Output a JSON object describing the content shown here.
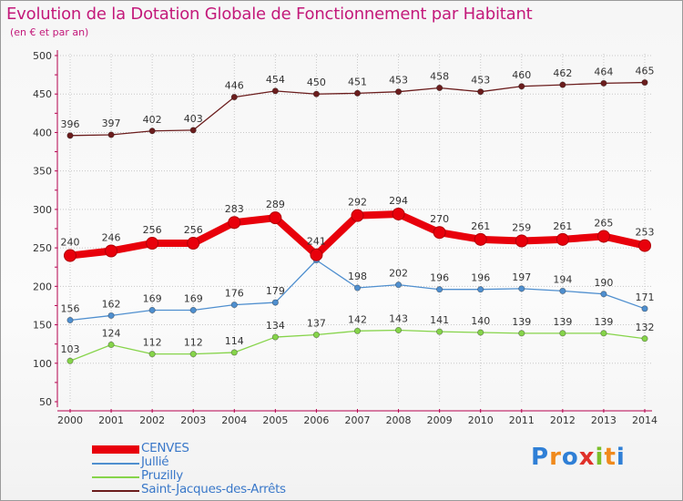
{
  "title": "Evolution de la Dotation Globale de Fonctionnement par Habitant",
  "subtitle": "(en € et par an)",
  "logo": {
    "letters": [
      "P",
      "r",
      "o",
      "x",
      "i",
      "t",
      "i"
    ],
    "colors": [
      "#2f7fd6",
      "#f08a1c",
      "#2f7fd6",
      "#e0312a",
      "#7bbf2a",
      "#f08a1c",
      "#2f7fd6"
    ]
  },
  "colors": {
    "title": "#c3197a",
    "axis": "#b5004e",
    "grid": "#c8c8c8",
    "legend_text": "#3a78c9"
  },
  "chart_data": {
    "type": "line",
    "title": "Evolution de la Dotation Globale de Fonctionnement par Habitant",
    "subtitle": "(en € et par an)",
    "xlabel": "",
    "ylabel": "",
    "ylim": [
      50,
      500
    ],
    "yticks": [
      50,
      100,
      150,
      200,
      250,
      300,
      350,
      400,
      450,
      500
    ],
    "grid": true,
    "legend_position": "bottom-left",
    "categories": [
      "2000",
      "2001",
      "2002",
      "2003",
      "2004",
      "2005",
      "2006",
      "2007",
      "2008",
      "2009",
      "2010",
      "2011",
      "2012",
      "2013",
      "2014"
    ],
    "series": [
      {
        "name": "CENVES",
        "color": "#e8000b",
        "style": "thick",
        "values": [
          240,
          246,
          256,
          256,
          283,
          289,
          241,
          292,
          294,
          270,
          261,
          259,
          261,
          265,
          253
        ]
      },
      {
        "name": "Jullié",
        "color": "#4f8fcf",
        "style": "thin",
        "values": [
          156,
          162,
          169,
          169,
          176,
          179,
          234,
          198,
          202,
          196,
          196,
          197,
          194,
          190,
          171
        ],
        "labels": [
          "156",
          "162",
          "169",
          "169",
          "176",
          "179",
          "",
          "198",
          "202",
          "196",
          "196",
          "197",
          "194",
          "190",
          "171"
        ]
      },
      {
        "name": "Pruzilly",
        "color": "#86d44a",
        "style": "thin",
        "values": [
          103,
          124,
          112,
          112,
          114,
          134,
          137,
          142,
          143,
          141,
          140,
          139,
          139,
          139,
          132
        ]
      },
      {
        "name": "Saint-Jacques-des-Arrêts",
        "color": "#6b1d1d",
        "style": "thin",
        "values": [
          396,
          397,
          402,
          403,
          446,
          454,
          450,
          451,
          453,
          458,
          453,
          460,
          462,
          464,
          465
        ]
      }
    ]
  }
}
